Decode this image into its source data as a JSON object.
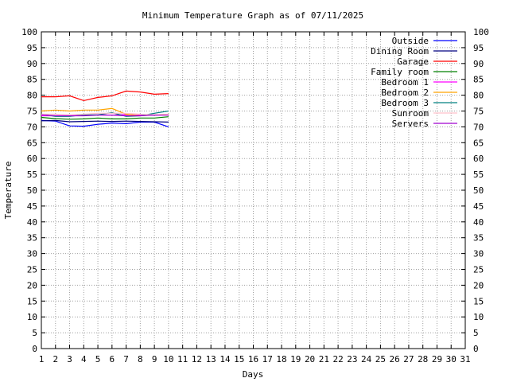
{
  "chart_data": {
    "type": "line",
    "title": "Minimum Temperature Graph as of 07/11/2025",
    "xlabel": "Days",
    "ylabel": "Temperature",
    "xlim": [
      1,
      31
    ],
    "ylim": [
      0,
      100
    ],
    "x_ticks": [
      1,
      2,
      3,
      4,
      5,
      6,
      7,
      8,
      9,
      10,
      11,
      12,
      13,
      14,
      15,
      16,
      17,
      18,
      19,
      20,
      21,
      22,
      23,
      24,
      25,
      26,
      27,
      28,
      29,
      30,
      31
    ],
    "y_ticks": [
      0,
      5,
      10,
      15,
      20,
      25,
      30,
      35,
      40,
      45,
      50,
      55,
      60,
      65,
      70,
      75,
      80,
      85,
      90,
      95,
      100
    ],
    "grid": true,
    "legend_position": "top-right",
    "x": [
      1,
      2,
      3,
      4,
      5,
      6,
      7,
      8,
      9,
      10
    ],
    "series": [
      {
        "name": "Outside",
        "color": "#0000ff",
        "values": [
          72.0,
          71.8,
          70.3,
          70.2,
          70.8,
          71.2,
          71.0,
          71.5,
          71.5,
          70.0
        ]
      },
      {
        "name": "Dining Room",
        "color": "#000080",
        "values": [
          71.9,
          72.0,
          71.6,
          71.7,
          71.8,
          71.7,
          71.8,
          71.7,
          71.6,
          71.5
        ]
      },
      {
        "name": "Garage",
        "color": "#ff0000",
        "values": [
          79.5,
          79.5,
          79.8,
          78.3,
          79.3,
          79.8,
          81.3,
          81.0,
          80.3,
          80.5
        ]
      },
      {
        "name": "Family room",
        "color": "#008000",
        "values": [
          73.0,
          72.6,
          72.4,
          72.5,
          72.8,
          72.5,
          72.5,
          72.8,
          72.8,
          73.2
        ]
      },
      {
        "name": "Bedroom 1",
        "color": "#ff00ff",
        "values": [
          73.5,
          73.5,
          73.5,
          73.6,
          73.8,
          73.7,
          73.9,
          73.7,
          73.7,
          73.8
        ]
      },
      {
        "name": "Bedroom 2",
        "color": "#ffa500",
        "values": [
          75.0,
          75.3,
          75.0,
          75.3,
          75.3,
          75.8,
          74.0,
          73.5,
          73.8,
          74.0
        ]
      },
      {
        "name": "Bedroom 3",
        "color": "#008080",
        "values": [
          74.0,
          73.3,
          73.3,
          73.8,
          73.8,
          74.5,
          73.3,
          73.5,
          74.3,
          75.0
        ]
      },
      {
        "name": "Sunroom",
        "color": "#ffc0cb",
        "values": [
          74.0,
          74.0,
          73.8,
          74.0,
          74.3,
          74.3,
          74.3,
          74.0,
          73.8,
          74.0
        ]
      },
      {
        "name": "Servers",
        "color": "#a000d0",
        "values": [
          73.8,
          73.5,
          73.5,
          73.5,
          73.7,
          73.7,
          73.5,
          73.5,
          73.7,
          73.7
        ]
      }
    ]
  }
}
